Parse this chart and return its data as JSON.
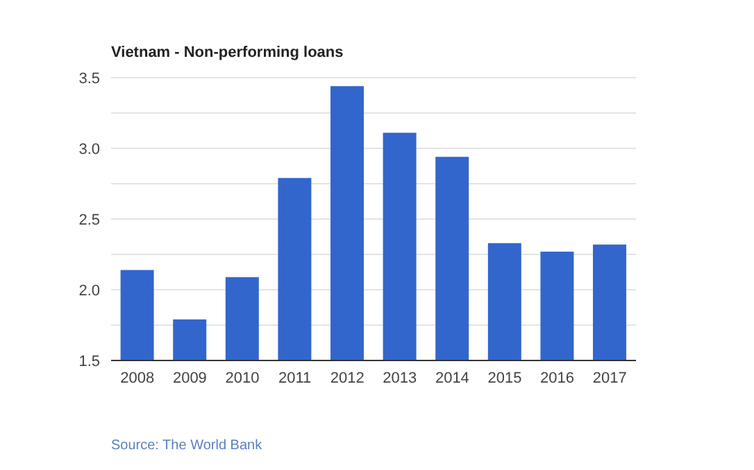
{
  "chart_data": {
    "type": "bar",
    "title": "Vietnam - Non-performing loans",
    "categories": [
      "2008",
      "2009",
      "2010",
      "2011",
      "2012",
      "2013",
      "2014",
      "2015",
      "2016",
      "2017"
    ],
    "values": [
      2.14,
      1.79,
      2.09,
      2.79,
      3.44,
      3.11,
      2.94,
      2.33,
      2.27,
      2.32
    ],
    "color": "#3366cc",
    "ylim": [
      1.5,
      3.5
    ],
    "yticks": [
      1.5,
      {
        "value": 1.75,
        "label": null
      },
      {
        "value": 2,
        "label": "2.0"
      },
      {
        "value": 2.25,
        "label": null
      },
      2.5,
      {
        "value": 2.75,
        "label": null
      },
      {
        "value": 3,
        "label": "3.0"
      },
      {
        "value": 3.25,
        "label": null
      },
      3.5
    ],
    "grid": "y",
    "annotations": [
      "Source: The World Bank"
    ]
  }
}
